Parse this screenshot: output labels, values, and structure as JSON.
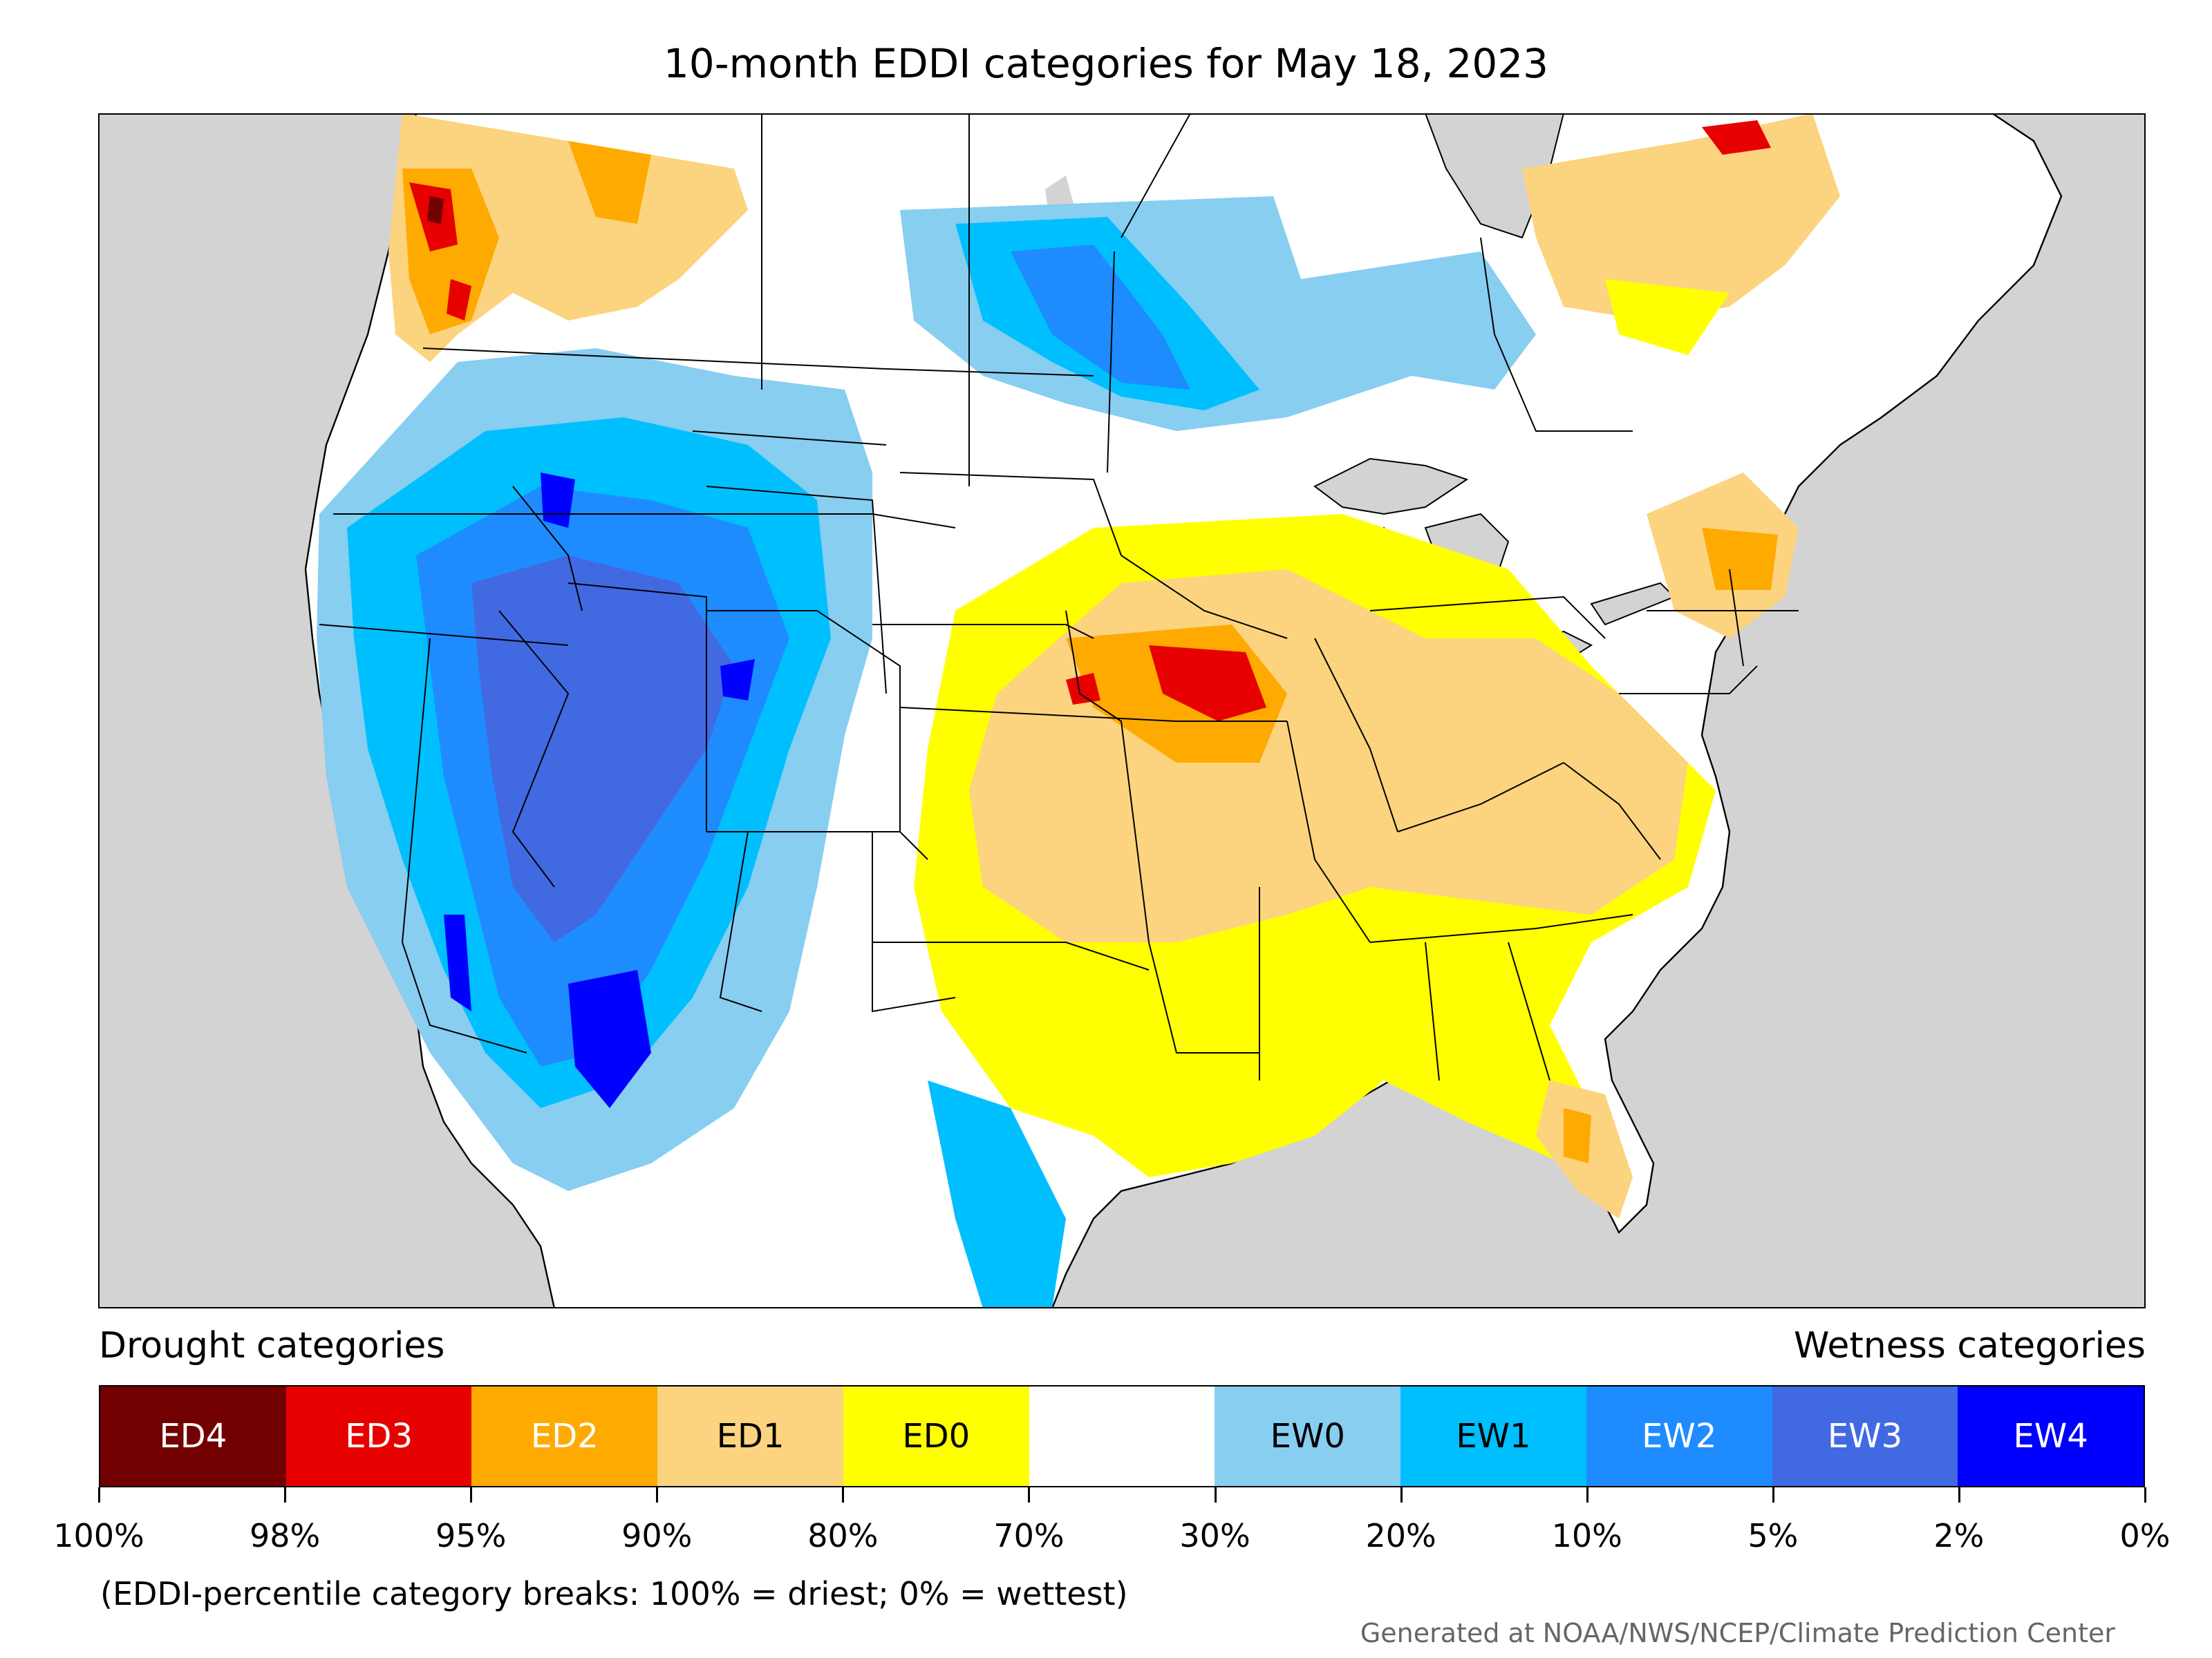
{
  "title": "10-month EDDI categories for May 18, 2023",
  "legend": {
    "drought_label": "Drought categories",
    "wetness_label": "Wetness categories",
    "categories": [
      {
        "label": "ED4",
        "color": "#730000",
        "text_color": "#ffffff"
      },
      {
        "label": "ED3",
        "color": "#e60000",
        "text_color": "#ffffff"
      },
      {
        "label": "ED2",
        "color": "#ffaa00",
        "text_color": "#ffffff"
      },
      {
        "label": "ED1",
        "color": "#fcd37f",
        "text_color": "#000000"
      },
      {
        "label": "ED0",
        "color": "#ffff00",
        "text_color": "#000000"
      },
      {
        "label": "",
        "color": "#ffffff",
        "text_color": "#000000"
      },
      {
        "label": "EW0",
        "color": "#87cef0",
        "text_color": "#000000"
      },
      {
        "label": "EW1",
        "color": "#00bfff",
        "text_color": "#000000"
      },
      {
        "label": "EW2",
        "color": "#1e8cff",
        "text_color": "#ffffff"
      },
      {
        "label": "EW3",
        "color": "#4169e1",
        "text_color": "#ffffff"
      },
      {
        "label": "EW4",
        "color": "#0000ff",
        "text_color": "#ffffff"
      }
    ],
    "tick_labels": [
      "100%",
      "98%",
      "95%",
      "90%",
      "80%",
      "70%",
      "30%",
      "20%",
      "10%",
      "5%",
      "2%",
      "0%"
    ]
  },
  "note": "(EDDI-percentile category breaks: 100% = driest; 0% = wettest)",
  "credit": "Generated at NOAA/NWS/NCEP/Climate Prediction Center",
  "map": {
    "ocean_color": "#d3d3d3",
    "land_color": "#ffffff",
    "region_summary": [
      {
        "region": "Pacific Northwest coast / British Columbia",
        "category": "ED2"
      },
      {
        "region": "Great Basin / Intermountain West",
        "category": "EW3"
      },
      {
        "region": "Southern Arizona / Baja California",
        "category": "EW4"
      },
      {
        "region": "Central Plains / Midwest",
        "category": "ED1"
      },
      {
        "region": "Iowa / Missouri core",
        "category": "ED3"
      },
      {
        "region": "Southeast / Gulf coast",
        "category": "ED0"
      },
      {
        "region": "Northeast coast",
        "category": "ED2"
      },
      {
        "region": "Manitoba / Northern Plains",
        "category": "EW1"
      }
    ]
  }
}
